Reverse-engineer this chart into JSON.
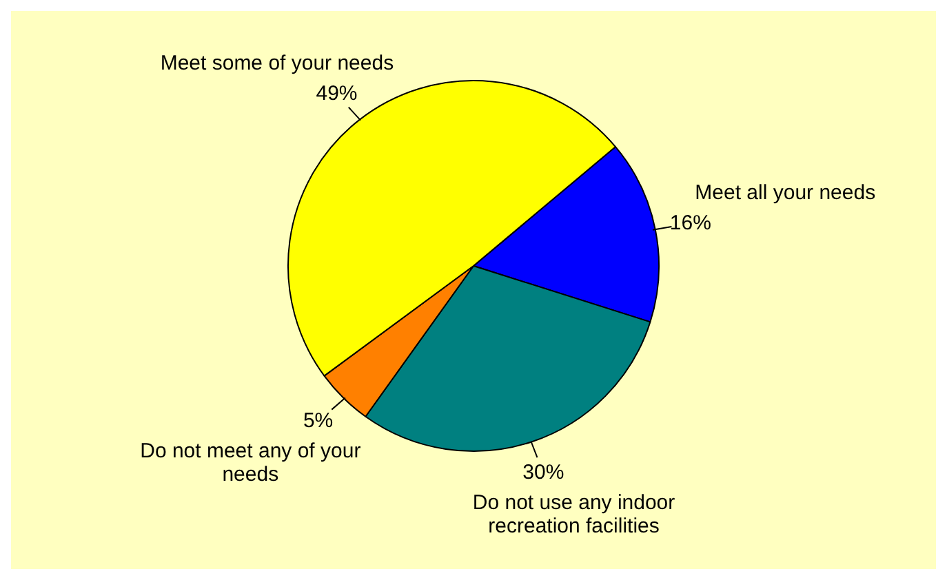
{
  "chart_data": {
    "type": "pie",
    "categories": [
      "Meet all your needs",
      "Do not use any indoor recreation facilities",
      "Do not meet any of your needs",
      "Meet some of your needs"
    ],
    "values": [
      16,
      30,
      5,
      49
    ],
    "value_labels": [
      "16%",
      "30%",
      "5%",
      "49%"
    ],
    "colors": [
      "#0000ff",
      "#008080",
      "#ff8000",
      "#ffff00"
    ],
    "legend": false
  }
}
